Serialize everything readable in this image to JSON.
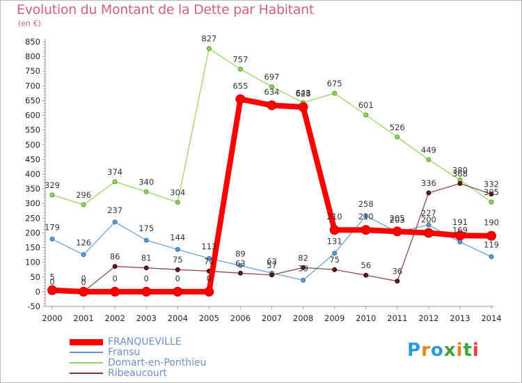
{
  "title": "Evolution du Montant de la Dette par Habitant",
  "unit": "(en €)",
  "logo_text": "Proxiti",
  "chart_data": {
    "type": "line",
    "title": "Evolution du Montant de la Dette par Habitant",
    "ylabel": "(en €)",
    "ylim": [
      -50,
      850
    ],
    "yticks": [
      -50,
      0,
      50,
      100,
      150,
      200,
      250,
      300,
      350,
      400,
      450,
      500,
      550,
      600,
      650,
      700,
      750,
      800,
      850
    ],
    "categories": [
      "2000",
      "2001",
      "2002",
      "2003",
      "2004",
      "2005",
      "2006",
      "2007",
      "2008",
      "2009",
      "2010",
      "2011",
      "2012",
      "2013",
      "2014"
    ],
    "grid": false,
    "legend_position": "bottom",
    "series": [
      {
        "name": "FRANQUEVILLE",
        "color": "#ff0000",
        "values": [
          5,
          0,
          0,
          0,
          0,
          0,
          655,
          634,
          628,
          210,
          210,
          205,
          200,
          191,
          190
        ],
        "labels": [
          "5",
          "0",
          "0",
          "0",
          "0",
          "0",
          "655",
          "634",
          "628",
          "210",
          "210",
          "205",
          "200",
          "191",
          "190"
        ]
      },
      {
        "name": "Fransu",
        "color": "#5b9bd5",
        "values": [
          179,
          126,
          237,
          175,
          144,
          113,
          89,
          63,
          39,
          131,
          258,
          203,
          227,
          169,
          119
        ],
        "labels": [
          "179",
          "126",
          "237",
          "175",
          "144",
          "113",
          "89",
          "63",
          "39",
          "131",
          "258",
          "203",
          "227",
          "169",
          "119"
        ]
      },
      {
        "name": "Domart-en-Ponthieu",
        "color": "#8ed35b",
        "values": [
          329,
          296,
          374,
          340,
          304,
          827,
          757,
          697,
          643,
          675,
          601,
          526,
          449,
          380,
          305
        ],
        "labels": [
          "329",
          "296",
          "374",
          "340",
          "304",
          "827",
          "757",
          "697",
          "643",
          "675",
          "601",
          "526",
          "449",
          "380",
          "305"
        ]
      },
      {
        "name": "Ribeaucourt",
        "color": "#7a3a3a",
        "values": [
          0,
          0,
          86,
          81,
          75,
          70,
          63,
          57,
          82,
          75,
          56,
          36,
          336,
          368,
          332
        ],
        "labels": [
          "0",
          "0",
          "86",
          "81",
          "75",
          "70",
          "63",
          "57",
          "82",
          "75",
          "56",
          "36",
          "336",
          "368",
          "332"
        ]
      }
    ]
  }
}
